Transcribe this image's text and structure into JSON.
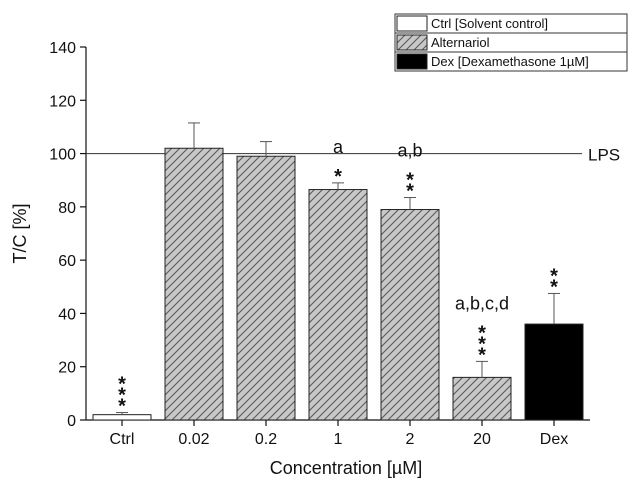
{
  "chart_data": {
    "type": "bar",
    "xlabel": "Concentration [µM]",
    "ylabel": "T/C [%]",
    "ylim": [
      0,
      140
    ],
    "yticks": [
      0,
      20,
      40,
      60,
      80,
      100,
      120,
      140
    ],
    "grid": false,
    "categories": [
      "Ctrl",
      "0.02",
      "0.2",
      "1",
      "2",
      "20",
      "Dex"
    ],
    "values": [
      2,
      102,
      99,
      86.5,
      79,
      16,
      36
    ],
    "errors": [
      0.8,
      9.5,
      5.5,
      2.5,
      4.5,
      6,
      11.5
    ],
    "groups": [
      "ctrl",
      "alt",
      "alt",
      "alt",
      "alt",
      "alt",
      "dex"
    ],
    "significance_stars": [
      "***",
      "",
      "",
      "*",
      "**",
      "***",
      "**"
    ],
    "letters": [
      "",
      "",
      "",
      "a",
      "a,b",
      "a,b,c,d",
      ""
    ],
    "reference_line": {
      "value": 100,
      "label": "LPS"
    },
    "legend": {
      "position": "top-right",
      "entries": [
        {
          "key": "ctrl",
          "label": "Ctrl [Solvent control]",
          "fill": "#ffffff"
        },
        {
          "key": "alt",
          "label": "Alternariol",
          "fill": "hatch"
        },
        {
          "key": "dex",
          "label": "Dex [Dexamethasone 1µM]",
          "fill": "#000000"
        }
      ]
    },
    "colors": {
      "hatch_bg": "#c8c8c8",
      "hatch_line": "#5a5a5a",
      "dex": "#000000",
      "ctrl": "#ffffff"
    }
  }
}
